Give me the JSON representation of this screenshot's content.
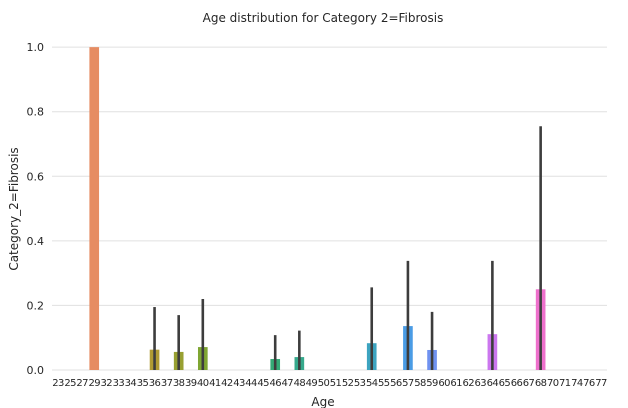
{
  "chart_data": {
    "type": "bar",
    "title": "Age distribution for Category 2=Fibrosis",
    "xlabel": "Age",
    "ylabel": "Category_2=Fibrosis",
    "ylim": [
      0,
      1.05
    ],
    "yticks": [
      "0.0",
      "0.2",
      "0.4",
      "0.6",
      "0.8",
      "1.0"
    ],
    "grid": true,
    "categories": [
      "23",
      "25",
      "27",
      "29",
      "32",
      "33",
      "34",
      "35",
      "36",
      "37",
      "38",
      "39",
      "40",
      "41",
      "42",
      "43",
      "44",
      "45",
      "46",
      "47",
      "48",
      "49",
      "50",
      "51",
      "52",
      "53",
      "54",
      "55",
      "56",
      "57",
      "58",
      "59",
      "60",
      "61",
      "62",
      "63",
      "64",
      "65",
      "66",
      "67",
      "68",
      "70",
      "71",
      "74",
      "76",
      "77"
    ],
    "values": [
      0,
      0,
      0,
      1.0,
      0,
      0,
      0,
      0,
      0.063,
      0,
      0.056,
      0,
      0.071,
      0,
      0,
      0,
      0,
      0,
      0.034,
      0,
      0.04,
      0,
      0,
      0,
      0,
      0,
      0.083,
      0,
      0,
      0.136,
      0,
      0.062,
      0,
      0,
      0,
      0,
      0.111,
      0,
      0,
      0,
      0.25,
      0,
      0,
      0,
      0,
      0
    ],
    "ci_low": [
      0,
      0,
      0,
      1.0,
      0,
      0,
      0,
      0,
      0,
      0,
      0,
      0,
      0,
      0,
      0,
      0,
      0,
      0,
      0,
      0,
      0,
      0,
      0,
      0,
      0,
      0,
      0,
      0,
      0,
      0,
      0,
      0,
      0,
      0,
      0,
      0,
      0,
      0,
      0,
      0,
      0,
      0,
      0,
      0,
      0,
      0
    ],
    "ci_high": [
      0,
      0,
      0,
      1.0,
      0,
      0,
      0,
      0,
      0.195,
      0,
      0.17,
      0,
      0.22,
      0,
      0,
      0,
      0,
      0,
      0.108,
      0,
      0.122,
      0,
      0,
      0,
      0,
      0,
      0.256,
      0,
      0,
      0.338,
      0,
      0.18,
      0,
      0,
      0,
      0,
      0.338,
      0,
      0,
      0,
      0.755,
      0,
      0,
      0,
      0,
      0
    ],
    "colors": [
      "#f29886",
      "#f3928e",
      "#ef9478",
      "#e68c62",
      "#dd904f",
      "#d5903f",
      "#c89437",
      "#bc9836",
      "#b09b33",
      "#a39f32",
      "#98a032",
      "#8ea331",
      "#7fa632",
      "#6aa835",
      "#55a93b",
      "#3fab46",
      "#36ab58",
      "#33ab69",
      "#34aa76",
      "#35a982",
      "#36a98c",
      "#37a895",
      "#37a89d",
      "#38a7a5",
      "#39a6ad",
      "#3aa5b6",
      "#3ca4c0",
      "#3ea2cb",
      "#41a0d8",
      "#4a9ce5",
      "#5a97ec",
      "#6f92f0",
      "#858cf2",
      "#9a86f3",
      "#ac81f3",
      "#bd7bf2",
      "#cc77ef",
      "#d972e9",
      "#e46fe2",
      "#ec6dd9",
      "#ee70cc",
      "#f073be",
      "#f177b0",
      "#f27aa3",
      "#f27e96",
      "#f2818a"
    ],
    "errorbar_color": "#3d3d3d",
    "background": "#ffffff",
    "grid_color": "#e0e0e0"
  }
}
